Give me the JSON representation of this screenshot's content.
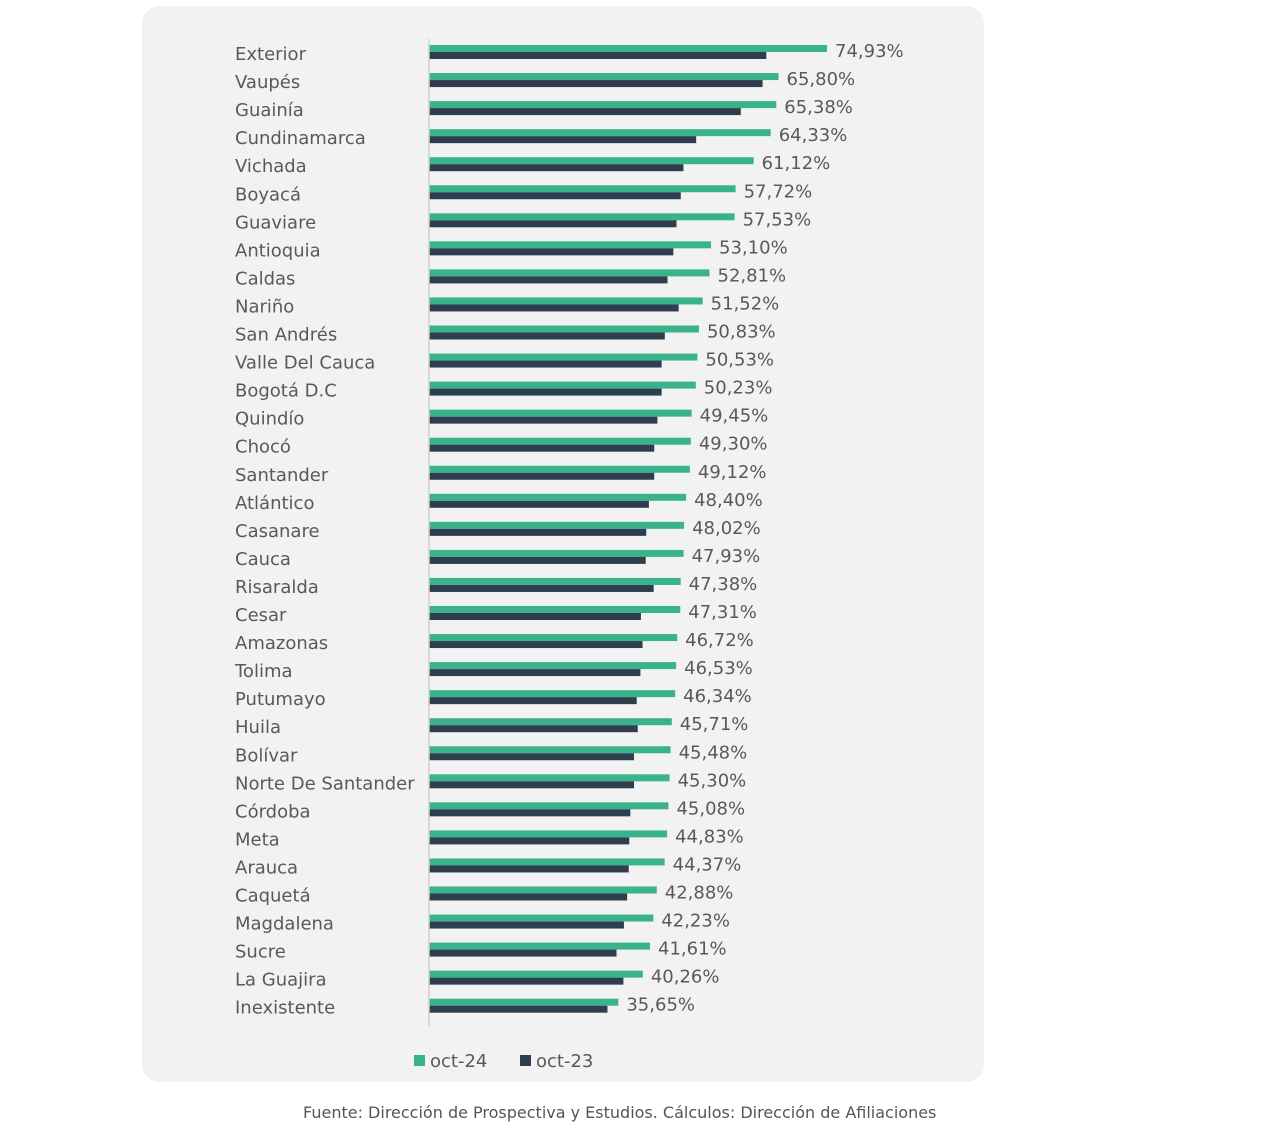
{
  "chart_data": {
    "type": "bar",
    "orientation": "horizontal",
    "categories": [
      "Exterior",
      "Vaupés",
      "Guainía",
      "Cundinamarca",
      "Vichada",
      "Boyacá",
      "Guaviare",
      "Antioquia",
      "Caldas",
      "Nariño",
      "San Andrés",
      "Valle Del Cauca",
      "Bogotá D.C",
      "Quindío",
      "Chocó",
      "Santander",
      "Atlántico",
      "Casanare",
      "Cauca",
      "Risaralda",
      "Cesar",
      "Amazonas",
      "Tolima",
      "Putumayo",
      "Huila",
      "Bolívar",
      "Norte De Santander",
      "Córdoba",
      "Meta",
      "Arauca",
      "Caquetá",
      "Magdalena",
      "Sucre",
      "La Guajira",
      "Inexistente"
    ],
    "series": [
      {
        "name": "oct-24",
        "color": "#3bb38a",
        "values": [
          74.93,
          65.8,
          65.38,
          64.33,
          61.12,
          57.72,
          57.53,
          53.1,
          52.81,
          51.52,
          50.83,
          50.53,
          50.23,
          49.45,
          49.3,
          49.12,
          48.4,
          48.02,
          47.93,
          47.38,
          47.31,
          46.72,
          46.53,
          46.34,
          45.71,
          45.48,
          45.3,
          45.08,
          44.83,
          44.37,
          42.88,
          42.23,
          41.61,
          40.26,
          35.65
        ],
        "labels": [
          "74,93%",
          "65,80%",
          "65,38%",
          "64,33%",
          "61,12%",
          "57,72%",
          "57,53%",
          "53,10%",
          "52,81%",
          "51,52%",
          "50,83%",
          "50,53%",
          "50,23%",
          "49,45%",
          "49,30%",
          "49,12%",
          "48,40%",
          "48,02%",
          "47,93%",
          "47,38%",
          "47,31%",
          "46,72%",
          "46,53%",
          "46,34%",
          "45,71%",
          "45,48%",
          "45,30%",
          "45,08%",
          "44,83%",
          "44,37%",
          "42,88%",
          "42,23%",
          "41,61%",
          "40,26%",
          "35,65%"
        ]
      },
      {
        "name": "oct-23",
        "color": "#2f3e4e",
        "values": [
          63.5,
          62.8,
          58.7,
          50.3,
          47.9,
          47.4,
          46.6,
          46.0,
          44.9,
          47.0,
          44.4,
          43.8,
          43.8,
          43.0,
          42.4,
          42.4,
          41.4,
          40.9,
          40.8,
          42.3,
          39.9,
          40.2,
          39.8,
          39.1,
          39.3,
          38.6,
          38.6,
          37.9,
          37.7,
          37.6,
          37.3,
          36.7,
          35.3,
          36.6,
          33.6
        ]
      }
    ],
    "xlim": [
      0,
      80
    ],
    "legend_position": "bottom",
    "grid": false,
    "show_x_axis": false
  },
  "legend": [
    {
      "label": "oct-24",
      "color": "#3bb38a"
    },
    {
      "label": "oct-23",
      "color": "#2f3e4e"
    }
  ],
  "source_note": "Fuente: Dirección de Prospectiva y Estudios. Cálculos: Dirección de Afiliaciones"
}
